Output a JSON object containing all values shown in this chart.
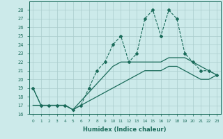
{
  "xlabel": "Humidex (Indice chaleur)",
  "background_color": "#cceaea",
  "grid_color": "#aacccc",
  "line_color": "#1a6b5a",
  "x": [
    0,
    1,
    2,
    3,
    4,
    5,
    6,
    7,
    8,
    9,
    10,
    11,
    12,
    13,
    14,
    15,
    16,
    17,
    18,
    19,
    20,
    21,
    22,
    23
  ],
  "y_jagged": [
    19,
    17,
    17,
    17,
    17,
    16.5,
    17,
    19,
    21,
    22,
    24,
    25,
    22,
    23,
    27,
    28,
    25,
    28,
    27,
    23,
    22,
    21,
    21,
    20.5
  ],
  "y_upper_smooth": [
    19,
    17,
    17,
    17,
    17,
    16.5,
    17.5,
    18.5,
    19.5,
    20.5,
    21.5,
    22,
    22,
    22,
    22,
    22,
    22,
    22.5,
    22.5,
    22.5,
    22,
    21.5,
    21,
    20.5
  ],
  "y_lower_smooth": [
    17,
    17,
    17,
    17,
    17,
    16.5,
    17,
    17.5,
    18,
    18.5,
    19,
    19.5,
    20,
    20.5,
    21,
    21,
    21,
    21.5,
    21.5,
    21,
    20.5,
    20,
    20,
    20.5
  ],
  "ylim": [
    16,
    29
  ],
  "xlim": [
    -0.5,
    23.5
  ],
  "yticks": [
    16,
    17,
    18,
    19,
    20,
    21,
    22,
    23,
    24,
    25,
    26,
    27,
    28
  ],
  "xticks": [
    0,
    1,
    2,
    3,
    4,
    5,
    6,
    7,
    8,
    9,
    10,
    11,
    12,
    13,
    14,
    15,
    16,
    17,
    18,
    19,
    20,
    21,
    22,
    23
  ]
}
